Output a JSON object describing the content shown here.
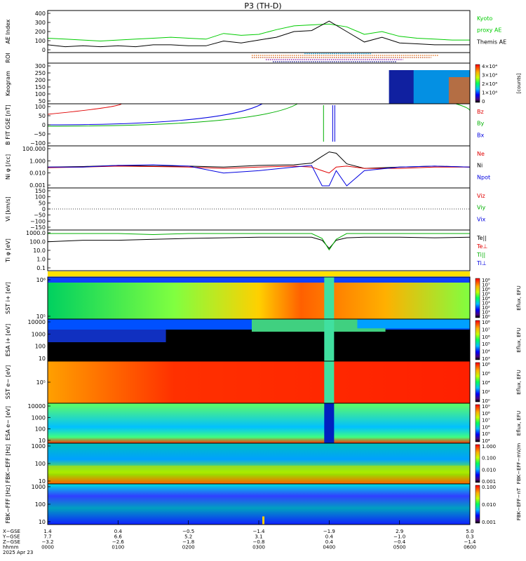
{
  "title": "P3 (TH-D)",
  "colors": {
    "ae_kyoto": "#00cc00",
    "ae_themis": "#000000",
    "bz": "#e00000",
    "by": "#00b000",
    "bx": "#0000e0",
    "ne": "#e00000",
    "ni": "#000000",
    "npot": "#0000e0"
  },
  "panels": [
    {
      "id": "ae",
      "ylabel": "AE Index",
      "yticks": [
        "400",
        "300",
        "200",
        "100",
        "0"
      ],
      "legend": [
        {
          "text": "Kyoto",
          "color": "#00cc00"
        },
        {
          "text": "proxy AE",
          "color": "#00cc00"
        },
        {
          "text": "Themis AE",
          "color": "#000000"
        }
      ]
    },
    {
      "id": "roi",
      "ylabel": "ROI",
      "yticks": [],
      "legend": []
    },
    {
      "id": "keogram",
      "ylabel": "Keogram",
      "yticks": [
        "300",
        "250",
        "200",
        "150",
        "100",
        "50"
      ],
      "legend": [],
      "colorbar": {
        "ticks": [
          "4×10⁴",
          "3×10⁴",
          "2×10⁴",
          "1×10⁴",
          "0"
        ],
        "label": "[counts]"
      }
    },
    {
      "id": "bfit",
      "ylabel": "B FIT GSE [nT]",
      "yticks": [
        "100",
        "50",
        "0",
        "−50",
        "−100"
      ],
      "legend": [
        {
          "text": "Bz",
          "color": "#e00000"
        },
        {
          "text": "By",
          "color": "#00b000"
        },
        {
          "text": "Bx",
          "color": "#0000e0"
        }
      ]
    },
    {
      "id": "ni",
      "ylabel": "Ni φ [/cc]",
      "yticks": [
        "100.000",
        "1.000",
        "0.010",
        "0.001"
      ],
      "legend": [
        {
          "text": "Ne",
          "color": "#e00000"
        },
        {
          "text": "Ni",
          "color": "#000000"
        },
        {
          "text": "Npot",
          "color": "#0000e0"
        }
      ]
    },
    {
      "id": "vi",
      "ylabel": "Vi [km/s]",
      "yticks": [
        "150",
        "100",
        "50",
        "0",
        "−50",
        "−100",
        "−150"
      ],
      "legend": [
        {
          "text": "Viz",
          "color": "#e00000"
        },
        {
          "text": "Viy",
          "color": "#00b000"
        },
        {
          "text": "Vix",
          "color": "#0000e0"
        }
      ]
    },
    {
      "id": "ti",
      "ylabel": "Ti φ [eV]",
      "yticks": [
        "1000.0",
        "100.0",
        "10.0",
        "1.0",
        "0.1"
      ],
      "legend": [
        {
          "text": "Te||",
          "color": "#000000"
        },
        {
          "text": "Te⊥",
          "color": "#e00000"
        },
        {
          "text": "Ti||",
          "color": "#00b000"
        },
        {
          "text": "Ti⊥",
          "color": "#0000e0"
        }
      ]
    },
    {
      "id": "sst_ion",
      "ylabel": "SST i+ [eV]",
      "yticks": [
        "10⁶",
        "10⁵"
      ],
      "legend": [],
      "colorbar": {
        "ticks": [
          "10⁸",
          "10⁷",
          "10⁶",
          "10⁵",
          "10⁴",
          "10³",
          "10²",
          "10¹",
          "10⁰"
        ],
        "label": "Eflux, EFU"
      }
    },
    {
      "id": "esa_ion",
      "ylabel": "ESA i+ [eV]",
      "yticks": [
        "10000",
        "1000",
        "100",
        "10"
      ],
      "legend": [],
      "colorbar": {
        "ticks": [
          "10⁸",
          "10⁷",
          "10⁶",
          "10⁵",
          "10⁴",
          "10³"
        ],
        "label": "Eflux, EFU"
      }
    },
    {
      "id": "sst_elec",
      "ylabel": "SST e− [eV]",
      "yticks": [
        "10⁵"
      ],
      "legend": [],
      "colorbar": {
        "ticks": [
          "10⁸",
          "10⁶",
          "10⁴",
          "10²",
          "10⁰"
        ],
        "label": "Eflux, EFU"
      }
    },
    {
      "id": "esa_elec",
      "ylabel": "ESA e− [eV]",
      "yticks": [
        "10000",
        "1000",
        "100",
        "10"
      ],
      "legend": [],
      "colorbar": {
        "ticks": [
          "10⁹",
          "10⁸",
          "10⁷",
          "10⁶",
          "10⁵",
          "10⁴"
        ],
        "label": "Eflux, EFU"
      }
    },
    {
      "id": "fbk_e",
      "ylabel": "FBK−EFF [Hz]",
      "yticks": [
        "1000",
        "100",
        "10"
      ],
      "legend": [],
      "colorbar": {
        "ticks": [
          "1.000",
          "0.100",
          "0.010",
          "0.001"
        ],
        "label": "FBK−EFF−mV/m"
      }
    },
    {
      "id": "fbk_b",
      "ylabel": "FBK−FFF [Hz]",
      "yticks": [
        "1000",
        "100",
        "10"
      ],
      "legend": [],
      "colorbar": {
        "ticks": [
          "0.100",
          "0.010",
          "0.001"
        ],
        "label": "FBK−EFF−nT"
      }
    }
  ],
  "x_axis": {
    "row_labels": [
      "X−GSE",
      "Y−GSE",
      "Z−GSE",
      "hhmm",
      "2025 Apr 23"
    ],
    "ticks": [
      {
        "x": "1.4",
        "y": "7.7",
        "z": "−3.2",
        "t": "0000"
      },
      {
        "x": "0.4",
        "y": "6.6",
        "z": "−2.6",
        "t": "0100"
      },
      {
        "x": "−0.5",
        "y": "5.2",
        "z": "−1.8",
        "t": "0200"
      },
      {
        "x": "−1.4",
        "y": "3.1",
        "z": "−0.8",
        "t": "0300"
      },
      {
        "x": "−1.9",
        "y": "0.4",
        "z": "0.4",
        "t": "0400"
      },
      {
        "x": "2.9",
        "y": "−1.0",
        "z": "−0.4",
        "t": "0500"
      },
      {
        "x": "5.0",
        "y": "0.3",
        "z": "−1.4",
        "t": "0600"
      }
    ]
  },
  "chart_data": {
    "type": "line",
    "title": "P3 (TH-D)",
    "x": {
      "unit": "hhmm",
      "range": [
        "0000",
        "0600"
      ],
      "ticks": [
        "0000",
        "0100",
        "0200",
        "0300",
        "0400",
        "0500",
        "0600"
      ]
    },
    "ae_index": {
      "ylim": [
        0,
        400
      ],
      "hours": [
        0,
        0.25,
        0.5,
        0.75,
        1,
        1.25,
        1.5,
        1.75,
        2,
        2.25,
        2.5,
        2.75,
        3,
        3.25,
        3.5,
        3.75,
        4,
        4.25,
        4.5,
        4.75,
        5,
        5.25,
        5.5,
        5.75,
        6
      ],
      "series": [
        {
          "name": "Kyoto proxy AE",
          "values": [
            130,
            120,
            110,
            100,
            110,
            120,
            130,
            140,
            130,
            120,
            180,
            160,
            170,
            220,
            260,
            270,
            280,
            250,
            170,
            200,
            150,
            130,
            120,
            110,
            110
          ]
        },
        {
          "name": "Themis AE",
          "values": [
            60,
            40,
            50,
            40,
            50,
            40,
            60,
            60,
            50,
            50,
            100,
            80,
            110,
            140,
            200,
            210,
            310,
            200,
            90,
            140,
            80,
            70,
            60,
            60,
            60
          ]
        }
      ]
    },
    "density": {
      "scale": "log",
      "ylim": [
        0.001,
        100
      ],
      "hours": [
        0,
        0.5,
        1,
        1.5,
        2,
        2.5,
        3,
        3.5,
        3.75,
        3.9,
        4,
        4.1,
        4.25,
        4.5,
        5,
        5.5,
        6
      ],
      "series": [
        {
          "name": "Ni",
          "values": [
            0.3,
            0.35,
            0.5,
            0.4,
            0.4,
            0.3,
            0.5,
            0.6,
            1.0,
            8,
            30,
            20,
            0.8,
            0.2,
            0.3,
            0.4,
            0.3
          ]
        },
        {
          "name": "Ne",
          "values": [
            0.25,
            0.3,
            0.4,
            0.35,
            0.3,
            0.2,
            0.3,
            0.4,
            0.3,
            0.1,
            0.05,
            0.3,
            0.4,
            0.2,
            0.2,
            0.3,
            0.3
          ]
        },
        {
          "name": "Npot",
          "values": [
            0.3,
            0.3,
            0.5,
            0.6,
            0.4,
            0.05,
            0.1,
            0.3,
            0.5,
            0.001,
            0.001,
            0.1,
            0.001,
            0.1,
            0.3,
            0.4,
            0.3
          ]
        }
      ]
    },
    "ion_temperature": {
      "scale": "log",
      "ylim": [
        0.1,
        3000
      ],
      "hours": [
        0,
        0.5,
        1,
        1.5,
        2,
        2.5,
        3,
        3.5,
        3.75,
        3.9,
        4,
        4.1,
        4.25,
        4.5,
        5,
        5.5,
        6
      ],
      "series": [
        {
          "name": "Te||",
          "values": [
            200,
            300,
            300,
            400,
            500,
            600,
            700,
            700,
            700,
            300,
            30,
            300,
            600,
            700,
            700,
            600,
            700
          ]
        },
        {
          "name": "Ti||",
          "values": [
            2000,
            2000,
            2000,
            1500,
            2000,
            2000,
            2000,
            2000,
            2000,
            500,
            20,
            400,
            2000,
            2000,
            2000,
            2000,
            2000
          ]
        }
      ]
    }
  }
}
